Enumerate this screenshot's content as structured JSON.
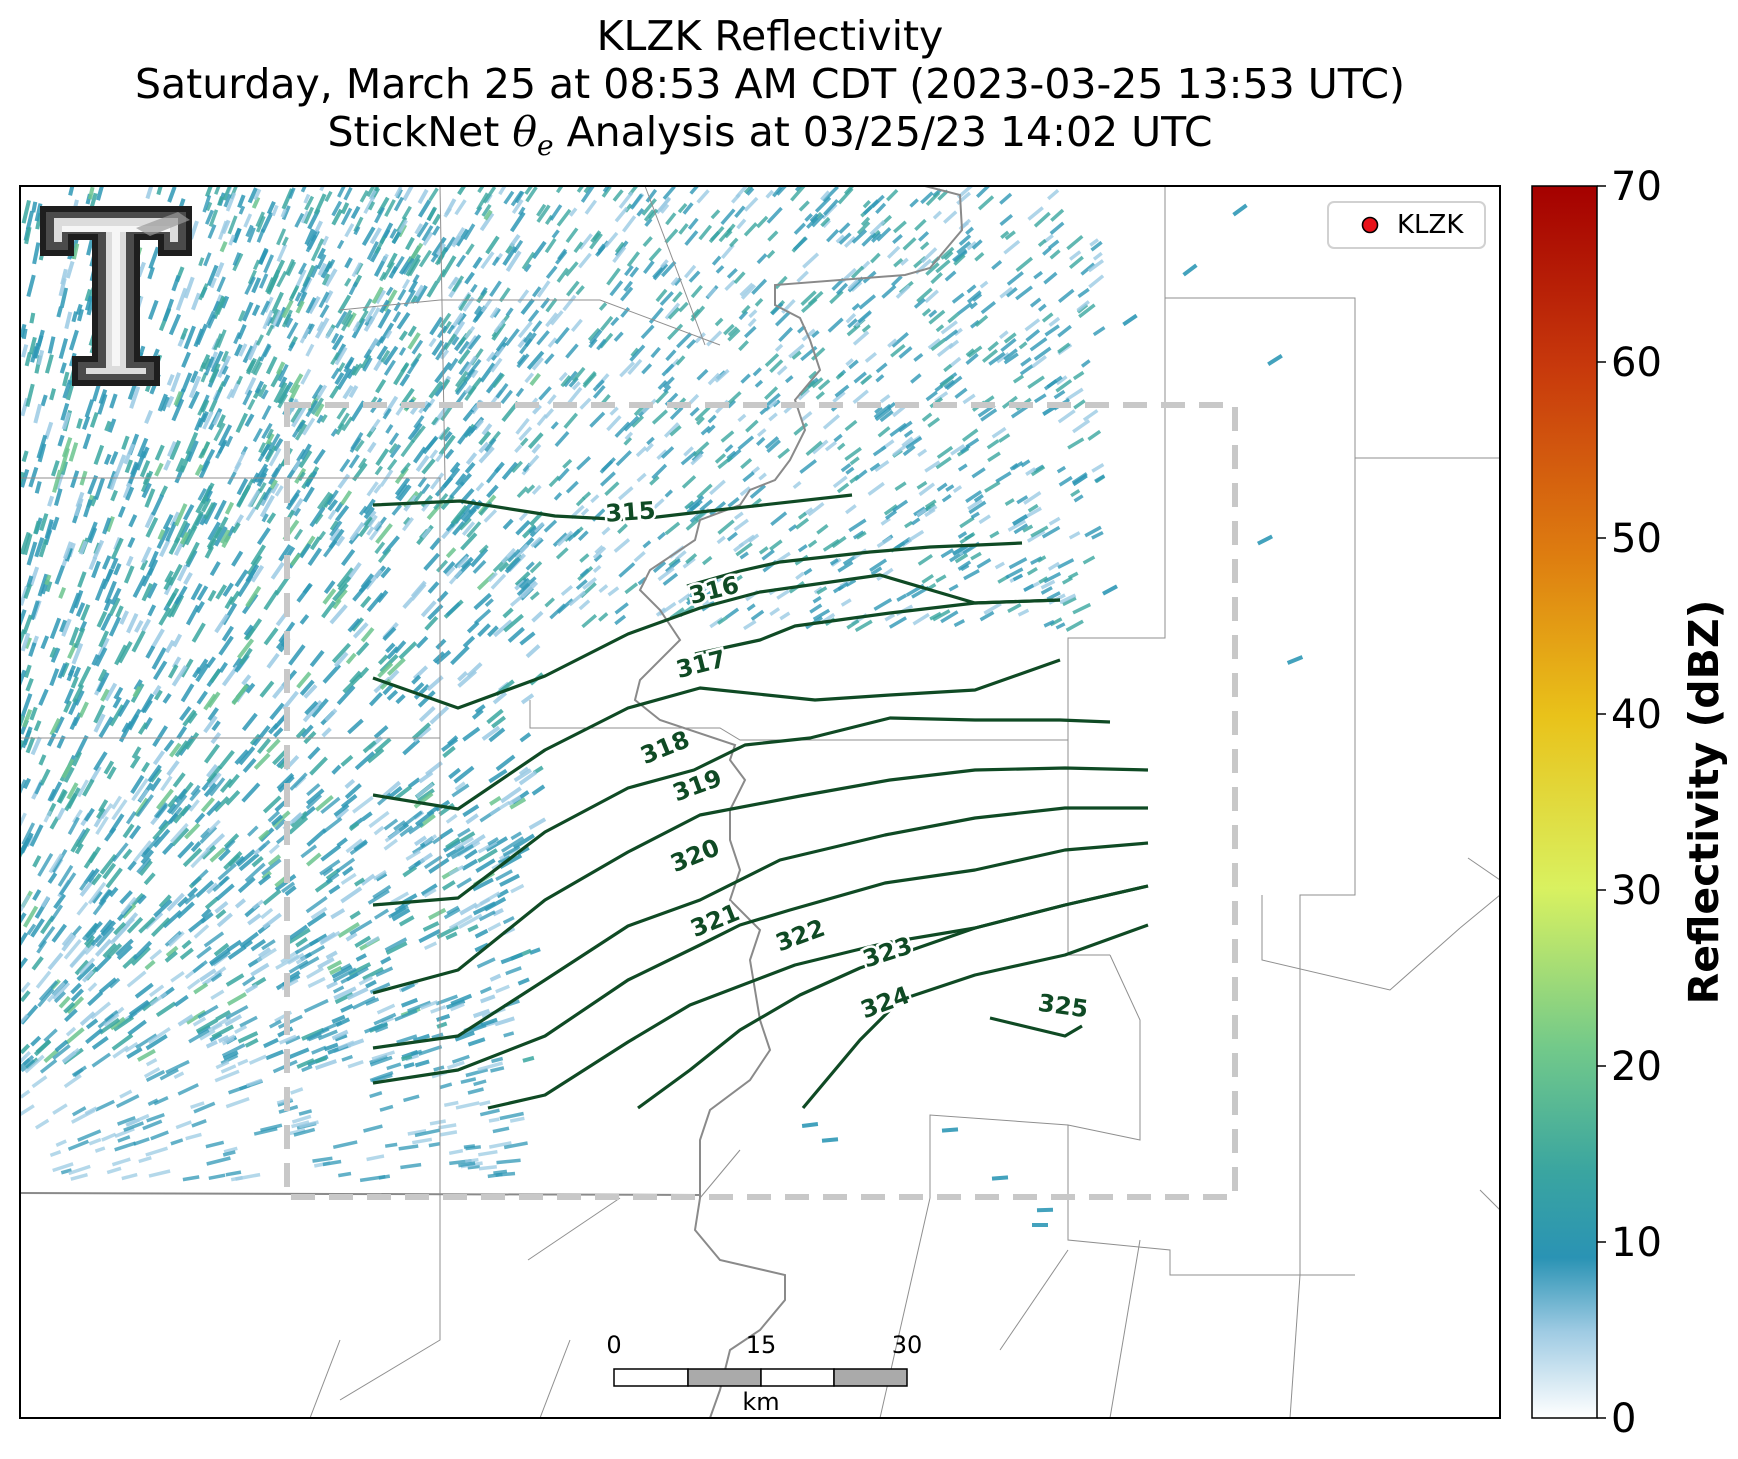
{
  "title": {
    "line1": "KLZK Reflectivity",
    "line2": "Saturday, March 25 at 08:53 AM CDT (2023-03-25 13:53 UTC)",
    "line3_prefix": "StickNet ",
    "line3_symbol": "θ",
    "line3_subscript": "e",
    "line3_suffix": " Analysis at 03/25/23 14:02 UTC"
  },
  "legend": {
    "label": "KLZK",
    "marker_color": "#e8121a"
  },
  "logo": {
    "text": "T",
    "description": "double-T logo"
  },
  "colorbar": {
    "label": "Reflectivity (dBZ)",
    "ticks": [
      "0",
      "10",
      "20",
      "30",
      "40",
      "50",
      "60",
      "70"
    ],
    "range": [
      0,
      70
    ],
    "colors": [
      "#ffffff",
      "#9fcbe3",
      "#2a93b4",
      "#3aa5a0",
      "#72c98a",
      "#d9f160",
      "#e9c21a",
      "#de7d10",
      "#c83a0c",
      "#a40000"
    ]
  },
  "scalebar": {
    "ticks": [
      "0",
      "15",
      "30"
    ],
    "unit": "km"
  },
  "contours": {
    "color": "#0f4a24",
    "labels": [
      "315",
      "316",
      "317",
      "318",
      "319",
      "320",
      "321",
      "322",
      "323",
      "324",
      "325"
    ]
  },
  "analysis_box": {
    "style": "dashed",
    "color": "#c8c8c8"
  },
  "colors": {
    "echo_light": "#9ccbe4",
    "echo_mid": "#2f98b6",
    "echo_teal": "#3aa7a0",
    "echo_green": "#6cc58f"
  }
}
